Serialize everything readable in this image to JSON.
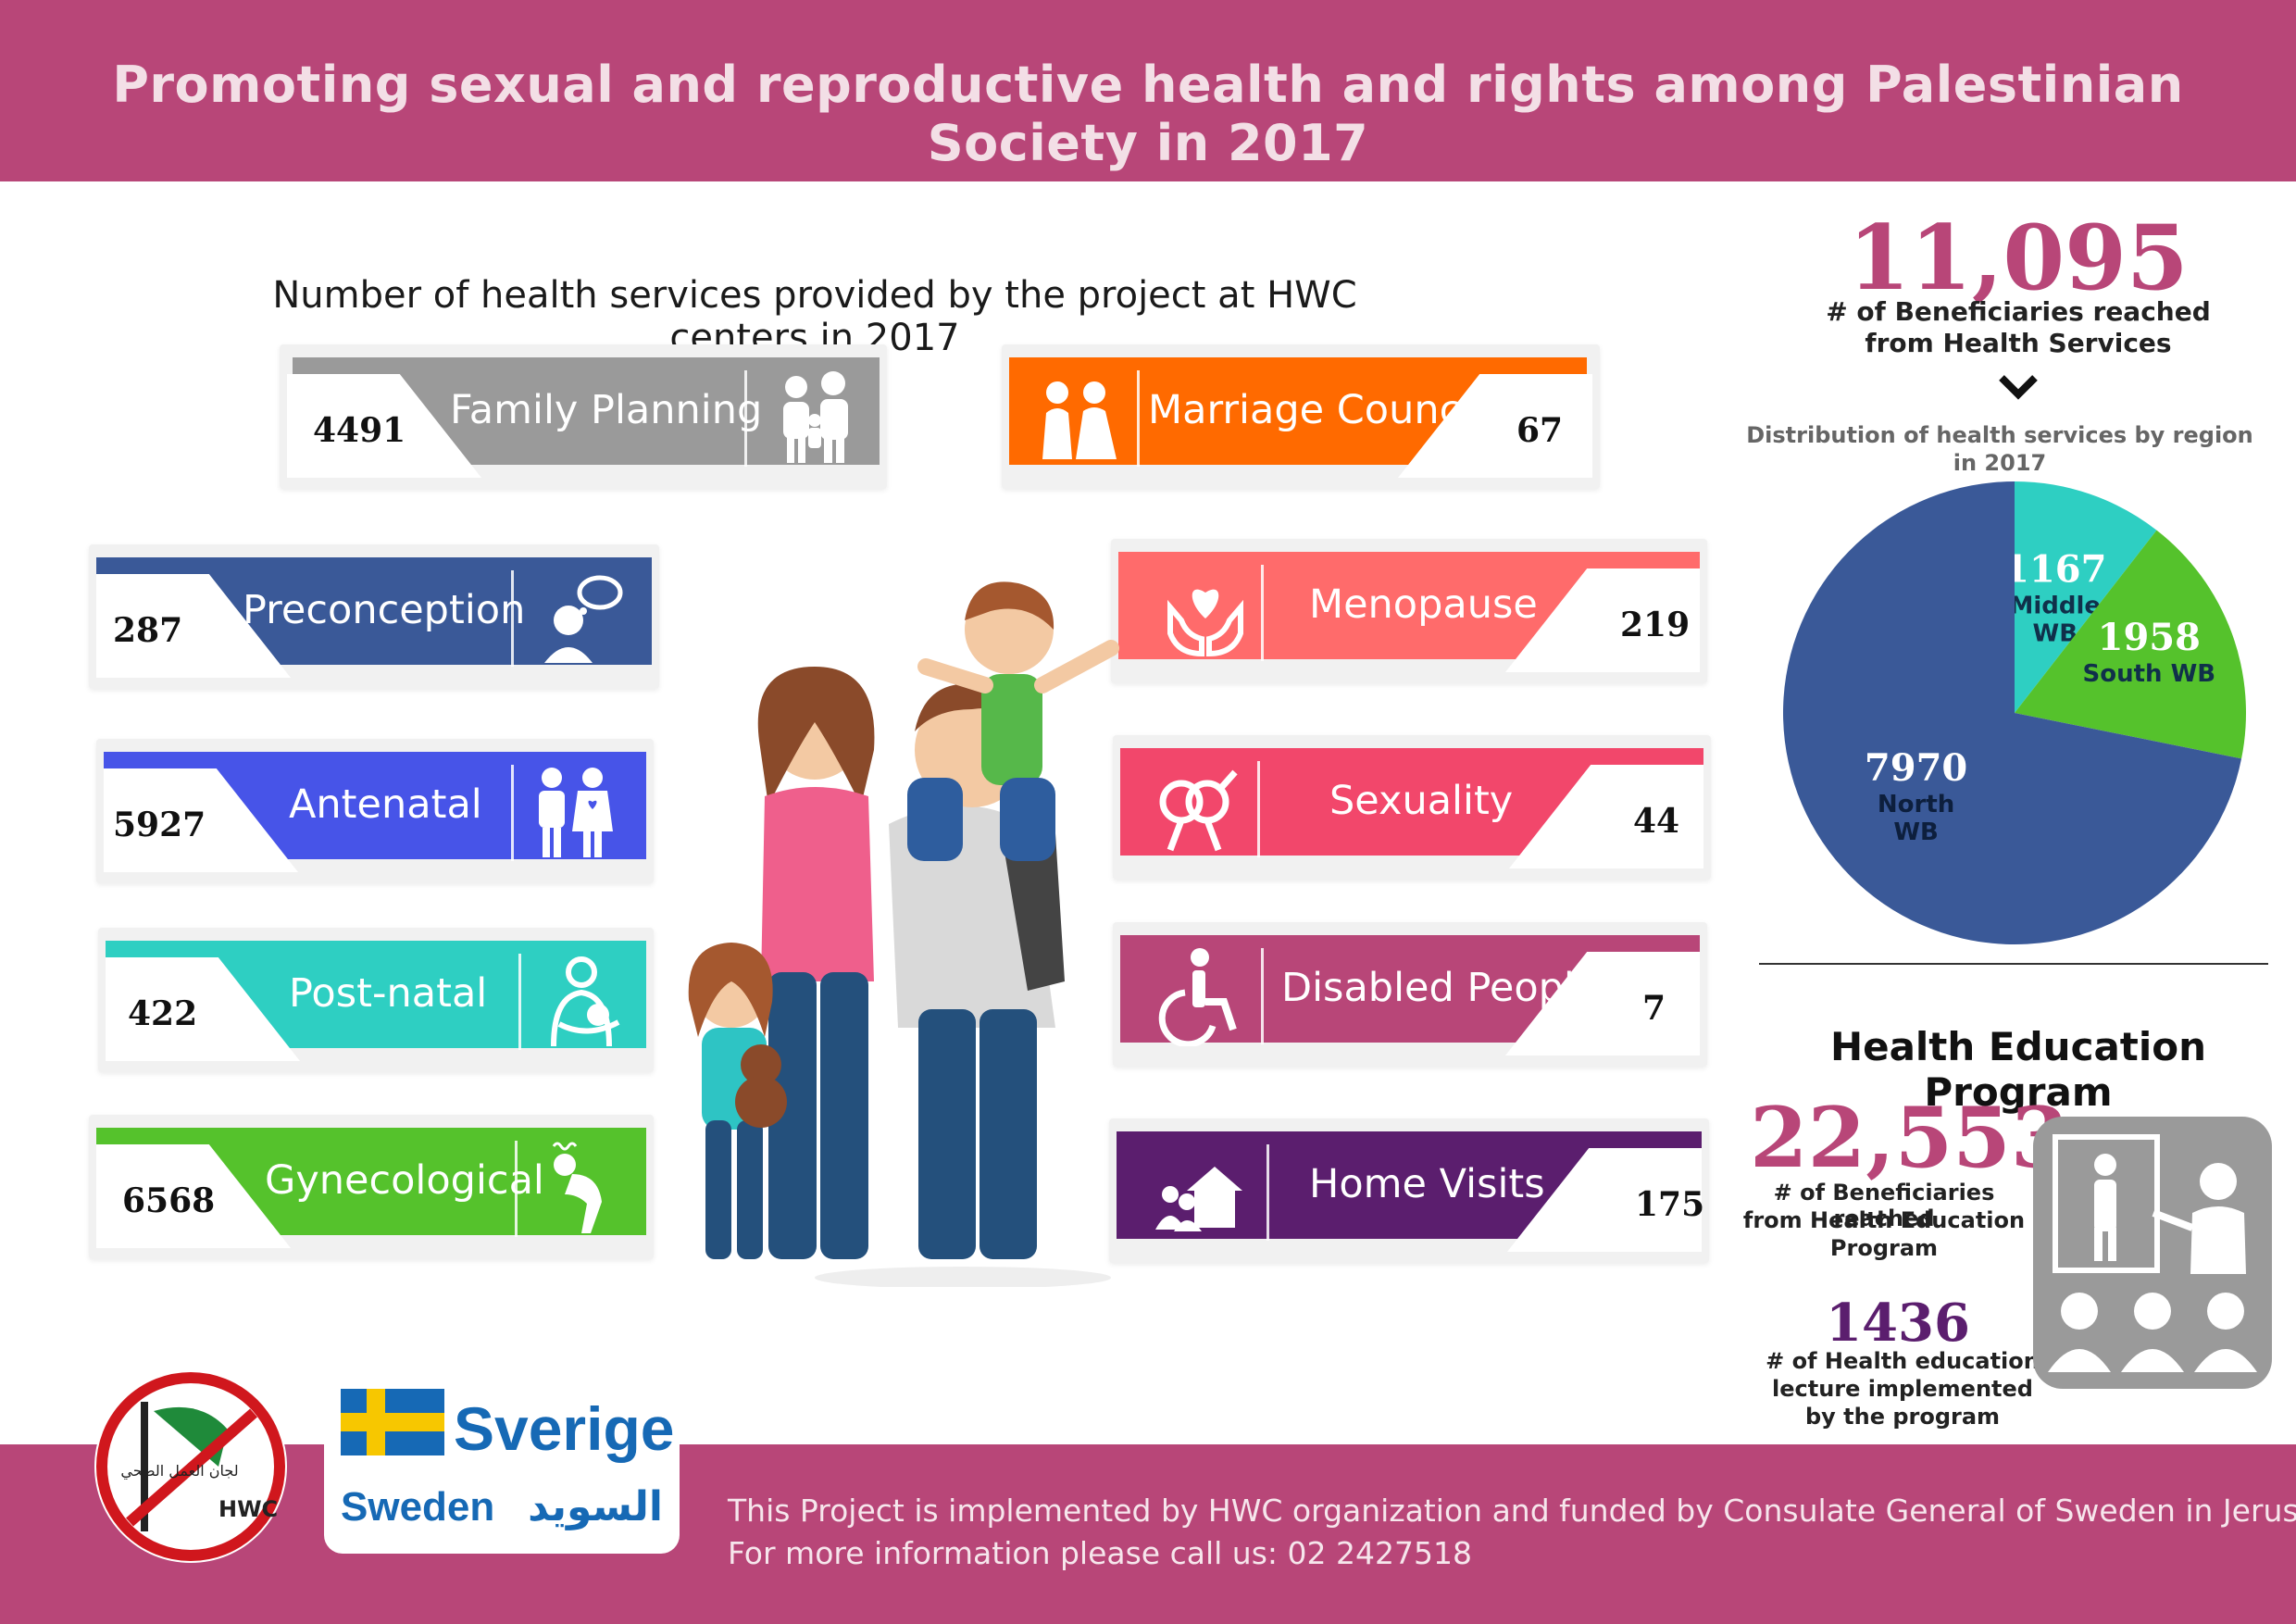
{
  "header": {
    "title": "Promoting sexual and reproductive health and rights among Palestinian Society in 2017"
  },
  "services": {
    "subtitle": "Number of health services provided by the project at HWC centers in 2017",
    "items": [
      {
        "label": "Family Planning",
        "value": "4491",
        "color": "#9a9a9a",
        "icon": "family-icon"
      },
      {
        "label": "Marriage Council",
        "value": "67",
        "color": "#ff6a00",
        "icon": "couple-icon"
      },
      {
        "label": "Preconception",
        "value": "287",
        "color": "#3a5998",
        "icon": "thinking-woman-icon"
      },
      {
        "label": "Menopause",
        "value": "219",
        "color": "#ff6b6b",
        "icon": "heart-hands-icon"
      },
      {
        "label": "Antenatal",
        "value": "5927",
        "color": "#4754e8",
        "icon": "parents-icon"
      },
      {
        "label": "Sexuality",
        "value": "44",
        "color": "#f2476b",
        "icon": "gender-icon"
      },
      {
        "label": "Post-natal",
        "value": "422",
        "color": "#2ecfc2",
        "icon": "mother-baby-icon"
      },
      {
        "label": "Disabled People",
        "value": "7",
        "color": "#b84678",
        "icon": "wheelchair-icon"
      },
      {
        "label": "Gynecological",
        "value": "6568",
        "color": "#55c22c",
        "icon": "pain-icon"
      },
      {
        "label": "Home Visits",
        "value": "175",
        "color": "#5b1e6e",
        "icon": "home-visit-icon"
      }
    ]
  },
  "beneficiaries": {
    "total": "11,095",
    "caption_line1": "# of Beneficiaries reached",
    "caption_line2": "from Health Services",
    "pie_caption_line1": "Distribution of health services by region",
    "pie_caption_line2": "in 2017"
  },
  "chart_data": {
    "type": "pie",
    "title": "Distribution of health services by region in 2017",
    "slices": [
      {
        "value": 1167,
        "label_line1": "Middle",
        "label_line2": "WB",
        "color": "#2ecfc2"
      },
      {
        "value": 1958,
        "label_line1": "South WB",
        "label_line2": "",
        "color": "#55c22c"
      },
      {
        "value": 7970,
        "label_line1": "North",
        "label_line2": "WB",
        "color": "#3a5998"
      }
    ]
  },
  "education": {
    "title": "Health Education Program",
    "beneficiaries": "22,553",
    "ben_line1": "# of Beneficiaries reached",
    "ben_line2": "from Health Education",
    "ben_line3": "Program",
    "lectures": "1436",
    "lec_line1": "# of Health education",
    "lec_line2": "lecture implemented",
    "lec_line3": "by the program"
  },
  "footer": {
    "line1": "This Project is implemented by HWC organization and funded by Consulate General of Sweden in Jerusalem",
    "line2": "For more information please call us: 02 2427518",
    "hwc_label": "HWC",
    "hwc_arabic": "لجان العمل الصحي",
    "sverige": "Sverige",
    "sweden": "Sweden",
    "sweden_arabic": "السويد"
  }
}
